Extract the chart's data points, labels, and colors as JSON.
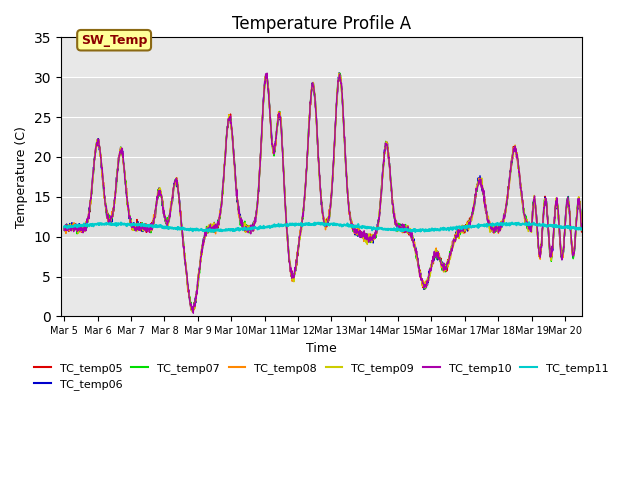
{
  "title": "Temperature Profile A",
  "xlabel": "Time",
  "ylabel": "Temperature (C)",
  "ylim": [
    0,
    35
  ],
  "x_tick_labels": [
    "Mar 5",
    "Mar 6",
    "Mar 7",
    "Mar 8",
    "Mar 9",
    "Mar 10",
    "Mar 11",
    "Mar 12",
    "Mar 13",
    "Mar 14",
    "Mar 15",
    "Mar 16",
    "Mar 17",
    "Mar 18",
    "Mar 19",
    "Mar 20"
  ],
  "background_color": "#ffffff",
  "plot_bg_color": "#e8e8e8",
  "sw_temp_label": "SW_Temp",
  "sw_temp_box_color": "#ffff99",
  "sw_temp_text_color": "#8b0000",
  "sw_temp_border_color": "#8b6914",
  "legend_labels": [
    "TC_temp05",
    "TC_temp06",
    "TC_temp07",
    "TC_temp08",
    "TC_temp09",
    "TC_temp10",
    "TC_temp11"
  ],
  "legend_colors": [
    "#dd0000",
    "#0000cc",
    "#00dd00",
    "#ff8800",
    "#cccc00",
    "#aa00aa",
    "#00cccc"
  ],
  "line_width": 1.0,
  "title_fontsize": 12
}
